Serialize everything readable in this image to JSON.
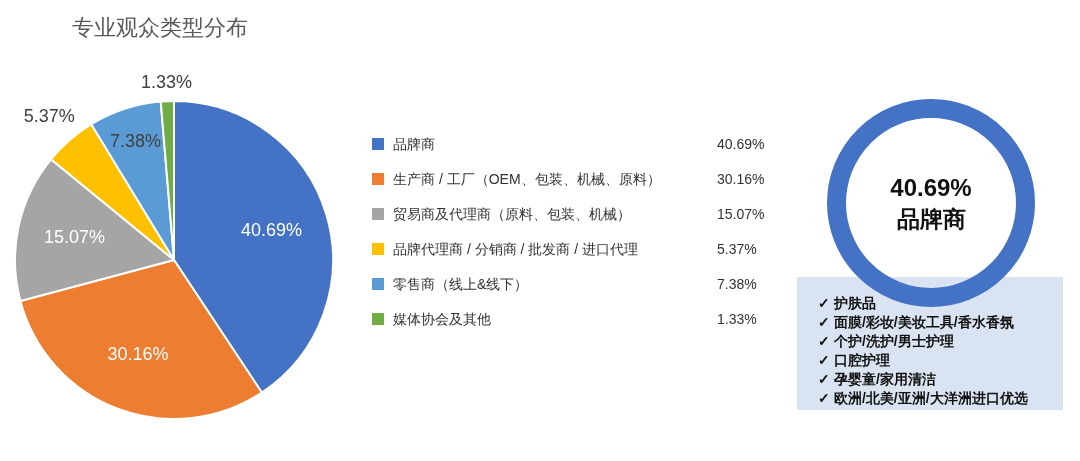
{
  "chart_data": [
    {
      "type": "pie",
      "title": "专业观众类型分布",
      "categories": [
        "品牌商",
        "生产商 / 工厂（OEM、包装、机械、原料）",
        "贸易商及代理商（原料、包装、机械）",
        "品牌代理商 / 分销商 / 批发商 / 进口代理",
        "零售商（线上&线下）",
        "媒体协会及其他"
      ],
      "values": [
        40.69,
        30.16,
        15.07,
        5.37,
        7.38,
        1.33
      ],
      "colors": [
        "#4472c4",
        "#ed7d31",
        "#a5a5a5",
        "#ffc000",
        "#5b9bd5",
        "#70ad47"
      ],
      "value_labels": [
        "40.69%",
        "30.16%",
        "15.07%",
        "5.37%",
        "7.38%",
        "1.33%"
      ],
      "legend": "right"
    },
    {
      "type": "other",
      "title": "40.69%",
      "subtitle": "品牌商",
      "annotations": [
        "✓ 护肤品",
        "✓ 面膜/彩妆/美妆工具/香水香氛",
        "✓ 个护/洗护/男士护理",
        "✓ 口腔护理",
        "✓ 孕婴童/家用清洁",
        "✓ 欧洲/北美/亚洲/大洋洲进口优选"
      ]
    }
  ]
}
